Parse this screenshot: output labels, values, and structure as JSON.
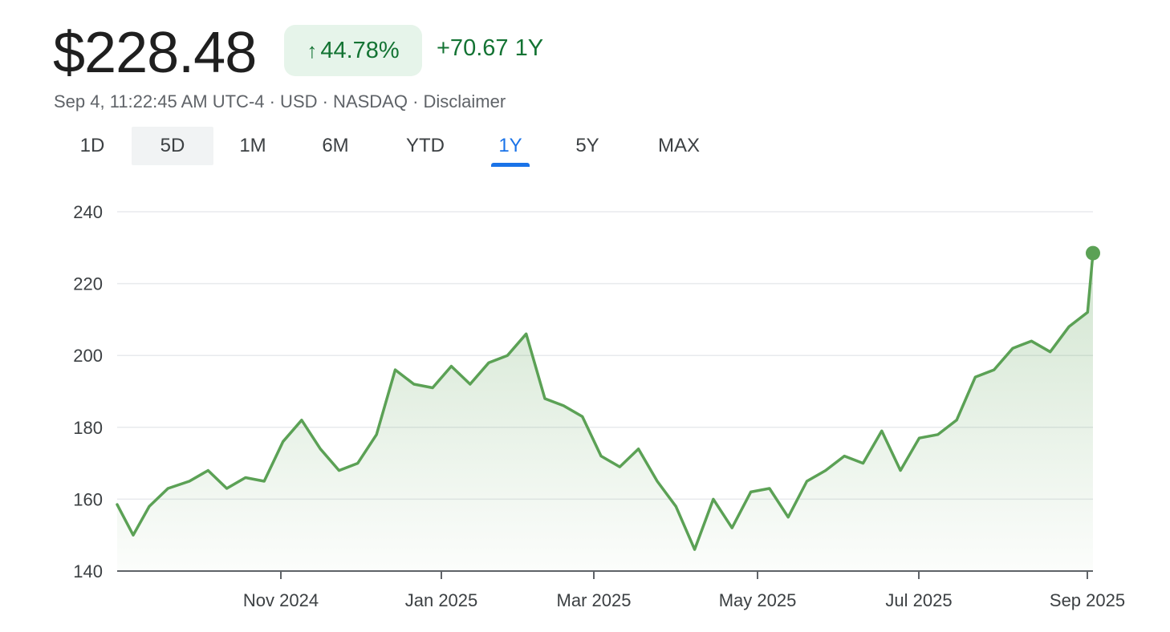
{
  "quote": {
    "price": "$228.48",
    "pct_change": "44.78%",
    "abs_change": "+70.67 1Y",
    "meta": "Sep 4, 11:22:45 AM UTC-4 · USD · NASDAQ · Disclaimer"
  },
  "icons": {
    "up": "arrow-up-icon"
  },
  "colors": {
    "up": "#137333",
    "line": "#5ba155",
    "accent": "#1a73e8"
  },
  "tabs": [
    "1D",
    "5D",
    "1M",
    "6M",
    "YTD",
    "1Y",
    "5Y",
    "MAX"
  ],
  "selected_tab": "1Y",
  "chart_data": {
    "type": "area",
    "ylim": [
      140,
      240
    ],
    "yticks": [
      140,
      160,
      180,
      200,
      220,
      240
    ],
    "xticks": [
      "Nov 2024",
      "Jan 2025",
      "Mar 2025",
      "May 2025",
      "Jul 2025",
      "Sep 2025"
    ],
    "grid": true,
    "x": [
      "2024-09-04",
      "2024-09-10",
      "2024-09-16",
      "2024-09-23",
      "2024-10-01",
      "2024-10-08",
      "2024-10-15",
      "2024-10-22",
      "2024-10-29",
      "2024-11-05",
      "2024-11-12",
      "2024-11-19",
      "2024-11-26",
      "2024-12-03",
      "2024-12-10",
      "2024-12-17",
      "2024-12-24",
      "2024-12-31",
      "2025-01-07",
      "2025-01-14",
      "2025-01-21",
      "2025-01-28",
      "2025-02-04",
      "2025-02-11",
      "2025-02-18",
      "2025-02-25",
      "2025-03-04",
      "2025-03-11",
      "2025-03-18",
      "2025-03-25",
      "2025-04-01",
      "2025-04-08",
      "2025-04-15",
      "2025-04-22",
      "2025-04-29",
      "2025-05-06",
      "2025-05-13",
      "2025-05-20",
      "2025-05-27",
      "2025-06-03",
      "2025-06-10",
      "2025-06-17",
      "2025-06-24",
      "2025-07-01",
      "2025-07-08",
      "2025-07-15",
      "2025-07-22",
      "2025-07-29",
      "2025-08-05",
      "2025-08-12",
      "2025-08-19",
      "2025-08-26",
      "2025-09-02",
      "2025-09-04"
    ],
    "values": [
      158.5,
      150,
      158,
      163,
      165,
      168,
      163,
      166,
      165,
      176,
      182,
      174,
      168,
      170,
      178,
      196,
      192,
      191,
      197,
      192,
      198,
      200,
      206,
      188,
      186,
      183,
      172,
      169,
      174,
      165,
      158,
      146,
      160,
      152,
      162,
      163,
      155,
      165,
      168,
      172,
      170,
      179,
      168,
      177,
      178,
      182,
      194,
      196,
      202,
      204,
      201,
      208,
      212,
      228.48
    ]
  }
}
